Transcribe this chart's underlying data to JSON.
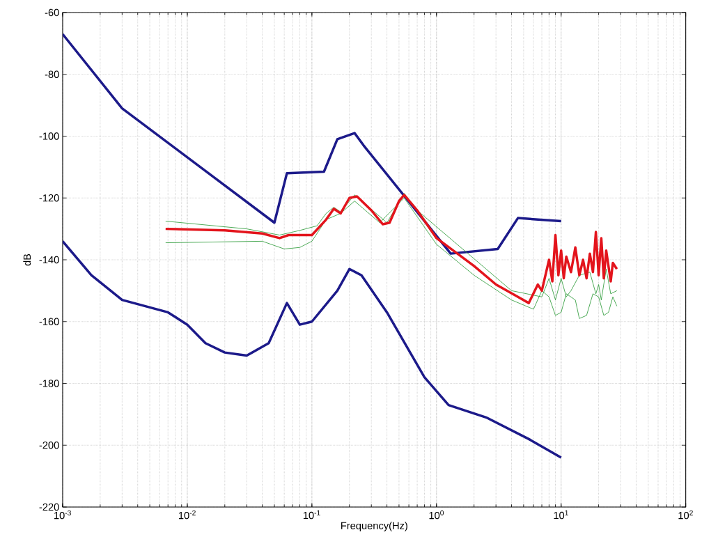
{
  "chart_data": {
    "type": "line",
    "xlabel": "Frequency(Hz)",
    "ylabel": "dB",
    "log": "x",
    "grid": true,
    "marker": "none",
    "line_style": "solid",
    "xlim": [
      0.001,
      100
    ],
    "ylim": [
      -220,
      -60
    ],
    "xticks": [
      {
        "value": 0.001,
        "label": "10$^{-3}$"
      },
      {
        "value": 0.01,
        "label": "10$^{-2}$"
      },
      {
        "value": 0.1,
        "label": "10$^{-1}$"
      },
      {
        "value": 1,
        "label": "10$^{0}$"
      },
      {
        "value": 10,
        "label": "10$^{1}$"
      },
      {
        "value": 100,
        "label": "10$^{2}$"
      }
    ],
    "yticks": [
      -220,
      -200,
      -180,
      -160,
      -140,
      -120,
      -100,
      -80,
      -60
    ],
    "series": [
      {
        "color": "#1c1a8a",
        "x": [
          0.001,
          0.003,
          0.05,
          0.063,
          0.125,
          0.16,
          0.22,
          0.26,
          1.3,
          3.1,
          4.5,
          10
        ],
        "values": [
          -67,
          -91,
          -128,
          -112,
          -111.5,
          -101,
          -99,
          -103,
          -138,
          -136.5,
          -126.5,
          -127.5
        ]
      },
      {
        "color": "#1c1a8a",
        "x": [
          0.001,
          0.0017,
          0.003,
          0.007,
          0.01,
          0.014,
          0.02,
          0.03,
          0.045,
          0.063,
          0.08,
          0.1,
          0.16,
          0.2,
          0.25,
          0.4,
          0.8,
          1.25,
          2.5,
          5.5,
          10
        ],
        "values": [
          -134,
          -145,
          -153,
          -157,
          -161,
          -167,
          -170,
          -171,
          -167,
          -154,
          -161,
          -160,
          -150,
          -143,
          -145,
          -157,
          -178,
          -187,
          -191,
          -198,
          -204
        ]
      },
      {
        "color": "#22962e",
        "x": [
          0.0067,
          0.03,
          0.055,
          0.08,
          0.11,
          0.13,
          0.15,
          0.17,
          0.22,
          0.3,
          0.4,
          0.55,
          0.7,
          1.0,
          2.0,
          4.0,
          7.0,
          8.0,
          9.0,
          10,
          11,
          12,
          14,
          17,
          19,
          20,
          21,
          23,
          25,
          28
        ],
        "values": [
          -127.5,
          -130,
          -132,
          -130.5,
          -129,
          -125,
          -123,
          -124.5,
          -119,
          null,
          -128,
          -118.5,
          -124,
          null,
          null,
          -150,
          -152,
          -146,
          -153,
          -146,
          -152,
          -150,
          -145,
          -144,
          -151,
          -148,
          -153,
          -143,
          -151,
          -150
        ]
      },
      {
        "color": "#22962e",
        "x": [
          0.0067,
          0.04,
          0.06,
          0.08,
          0.1,
          0.13,
          0.17,
          0.22,
          0.35,
          0.55,
          1.0,
          2.0,
          4.0,
          6.0,
          7.0,
          8.0,
          9.0,
          10,
          11,
          13,
          14,
          16,
          18,
          20,
          22,
          24,
          26,
          28
        ],
        "values": [
          -134.5,
          -134,
          -136.5,
          -136,
          -134,
          -127,
          -125,
          -121,
          -128,
          -120,
          -135,
          -145,
          -153,
          -156,
          -150,
          -152,
          -158,
          -157,
          -151,
          -153,
          -159,
          -158,
          -151,
          -152,
          -158,
          -157,
          -152,
          -155
        ]
      },
      {
        "color": "#e3141c",
        "x": [
          0.0067,
          0.02,
          0.04,
          0.055,
          0.065,
          0.1,
          0.13,
          0.15,
          0.17,
          0.2,
          0.23,
          0.3,
          0.37,
          0.42,
          0.5,
          0.55,
          0.7,
          1.0,
          2.0,
          3.0,
          4.5,
          5.5,
          6.5,
          7,
          8,
          8.5,
          9,
          9.5,
          10,
          10.5,
          11,
          12,
          13,
          14,
          15,
          16,
          17,
          18,
          19,
          20,
          21,
          22,
          23,
          25,
          26,
          28
        ],
        "values": [
          -130,
          -130.5,
          -131.5,
          -133,
          -132,
          -132,
          -127,
          -123.5,
          -125,
          -120,
          -119.5,
          -124,
          -128.5,
          -128,
          -121,
          -119,
          -124,
          -133,
          -142,
          -148,
          -152,
          -154,
          -148,
          -150,
          -140,
          -147,
          -132,
          -145,
          -137,
          -146,
          -139,
          -144,
          -136,
          -145,
          -140,
          -146,
          -138,
          -144,
          -131,
          -145,
          -133,
          -146,
          -137,
          -147,
          -141,
          -143
        ]
      }
    ]
  }
}
